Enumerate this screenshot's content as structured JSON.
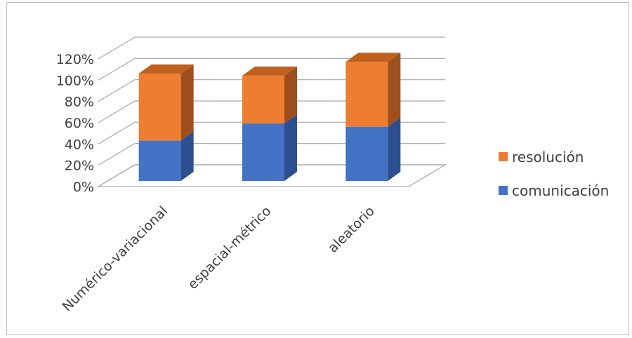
{
  "chart_data": {
    "type": "bar",
    "stacked": true,
    "three_d": true,
    "title": "",
    "xlabel": "",
    "ylabel": "",
    "categories": [
      "Numérico-variacional",
      "espacial-métrico",
      "aleatorio"
    ],
    "series": [
      {
        "name": "comunicación",
        "values": [
          0.38,
          0.54,
          0.51
        ],
        "color": "#4472c4",
        "color_side": "#2c4f8f",
        "color_top": "#3a63ad"
      },
      {
        "name": "resolución",
        "values": [
          0.63,
          0.45,
          0.61
        ],
        "color": "#ed7d31",
        "color_side": "#9e4f1c",
        "color_top": "#c0601f"
      }
    ],
    "ylim": [
      0,
      1.2
    ],
    "yticks": [
      "0%",
      "20%",
      "40%",
      "60%",
      "80%",
      "100%",
      "120%"
    ],
    "grid": true,
    "legend_position": "right"
  }
}
